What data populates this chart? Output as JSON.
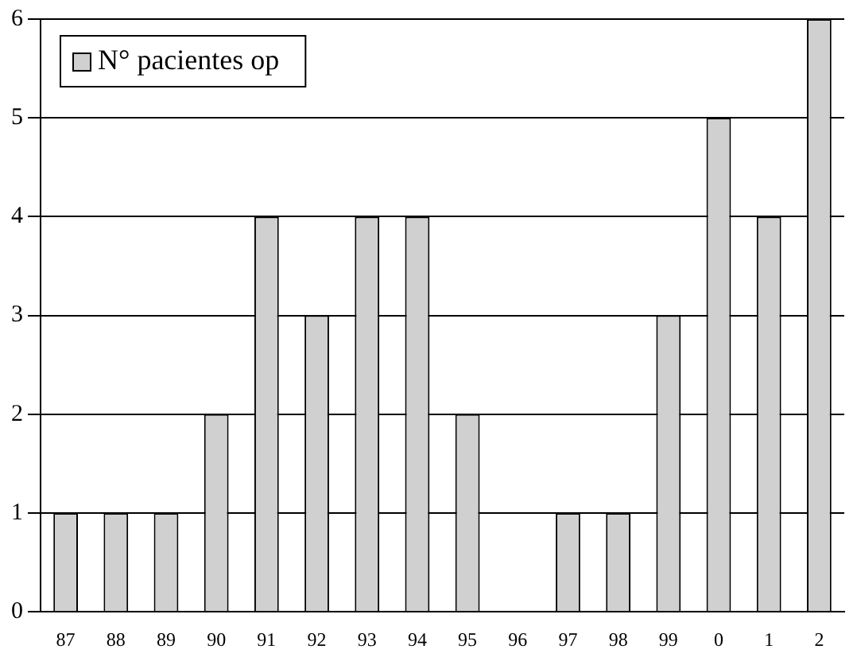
{
  "chart_data": {
    "type": "bar",
    "categories": [
      "87",
      "88",
      "89",
      "90",
      "91",
      "92",
      "93",
      "94",
      "95",
      "96",
      "97",
      "98",
      "99",
      "0",
      "1",
      "2"
    ],
    "series": [
      {
        "name": "N° pacientes op",
        "color": "#d0d0d0",
        "values": [
          1,
          1,
          1,
          2,
          4,
          3,
          4,
          4,
          2,
          0,
          1,
          1,
          3,
          5,
          4,
          6
        ]
      }
    ],
    "ylim": [
      0,
      6
    ],
    "yticks": [
      0,
      1,
      2,
      3,
      4,
      5,
      6
    ],
    "grid": "y",
    "legend": "top left"
  }
}
